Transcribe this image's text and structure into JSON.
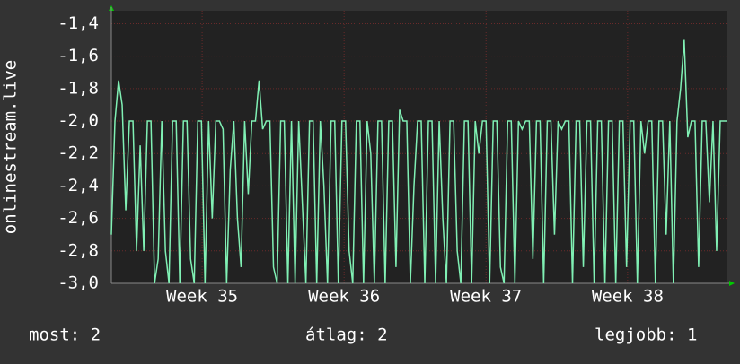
{
  "chart_data": {
    "type": "line",
    "ylabel": "onlinestream.live",
    "ylim": [
      -3.0,
      -1.32
    ],
    "yticks": [
      {
        "value": -1.4,
        "label": "-1,4"
      },
      {
        "value": -1.6,
        "label": "-1,6"
      },
      {
        "value": -1.8,
        "label": "-1,8"
      },
      {
        "value": -2.0,
        "label": "-2,0"
      },
      {
        "value": -2.2,
        "label": "-2,2"
      },
      {
        "value": -2.4,
        "label": "-2,4"
      },
      {
        "value": -2.6,
        "label": "-2,6"
      },
      {
        "value": -2.8,
        "label": "-2,8"
      },
      {
        "value": -3.0,
        "label": "-3,0"
      }
    ],
    "xlim": [
      0,
      171
    ],
    "xticks": [
      {
        "value": 25.2,
        "label": "Week 35"
      },
      {
        "value": 64.6,
        "label": "Week 36"
      },
      {
        "value": 104,
        "label": "Week 37"
      },
      {
        "value": 143.3,
        "label": "Week 38"
      }
    ],
    "grid": true,
    "series": [
      {
        "color": "#80f0b4",
        "values": [
          -2.7,
          -2.0,
          -1.75,
          -1.9,
          -2.55,
          -2.0,
          -2.0,
          -2.8,
          -2.15,
          -2.8,
          -2.0,
          -2.0,
          -3.0,
          -2.85,
          -2.0,
          -2.8,
          -3.0,
          -2.0,
          -2.0,
          -3.0,
          -2.0,
          -2.0,
          -2.85,
          -3.0,
          -2.0,
          -2.0,
          -3.0,
          -2.0,
          -2.6,
          -2.0,
          -2.0,
          -2.05,
          -3.0,
          -2.3,
          -2.0,
          -2.6,
          -2.9,
          -2.0,
          -2.45,
          -2.0,
          -2.0,
          -1.75,
          -2.05,
          -2.0,
          -2.0,
          -2.9,
          -3.0,
          -2.0,
          -2.0,
          -3.0,
          -2.0,
          -3.0,
          -2.0,
          -2.5,
          -3.0,
          -2.0,
          -2.0,
          -3.0,
          -2.0,
          -2.4,
          -3.0,
          -2.0,
          -2.0,
          -3.0,
          -2.0,
          -2.0,
          -2.8,
          -3.0,
          -2.0,
          -2.0,
          -3.0,
          -2.0,
          -2.2,
          -3.0,
          -2.0,
          -2.0,
          -3.0,
          -2.0,
          -2.0,
          -2.9,
          -1.93,
          -2.0,
          -2.0,
          -3.0,
          -2.4,
          -2.0,
          -2.0,
          -3.0,
          -2.0,
          -2.0,
          -3.0,
          -2.0,
          -2.6,
          -3.0,
          -2.0,
          -2.0,
          -2.8,
          -3.0,
          -2.0,
          -2.0,
          -3.0,
          -2.0,
          -2.2,
          -2.0,
          -2.0,
          -3.0,
          -2.0,
          -2.0,
          -2.9,
          -3.0,
          -2.0,
          -2.0,
          -3.0,
          -2.0,
          -2.05,
          -2.0,
          -2.0,
          -2.85,
          -2.0,
          -2.0,
          -3.0,
          -2.0,
          -2.0,
          -2.7,
          -2.0,
          -2.05,
          -2.0,
          -2.0,
          -3.0,
          -2.0,
          -2.0,
          -2.9,
          -2.0,
          -2.0,
          -3.0,
          -2.0,
          -2.0,
          -3.0,
          -2.0,
          -2.0,
          -3.0,
          -2.0,
          -2.0,
          -2.9,
          -2.0,
          -2.0,
          -3.0,
          -2.0,
          -2.2,
          -2.0,
          -2.0,
          -3.0,
          -2.0,
          -2.0,
          -2.7,
          -2.0,
          -3.0,
          -2.0,
          -1.8,
          -1.5,
          -2.1,
          -2.0,
          -2.0,
          -2.9,
          -2.0,
          -2.0,
          -2.5,
          -2.0,
          -2.8,
          -2.0,
          -2.0,
          -2.0
        ]
      }
    ]
  },
  "footer": {
    "current": "most: 2",
    "average": "átlag: 2",
    "best": "legjobb: 1"
  }
}
